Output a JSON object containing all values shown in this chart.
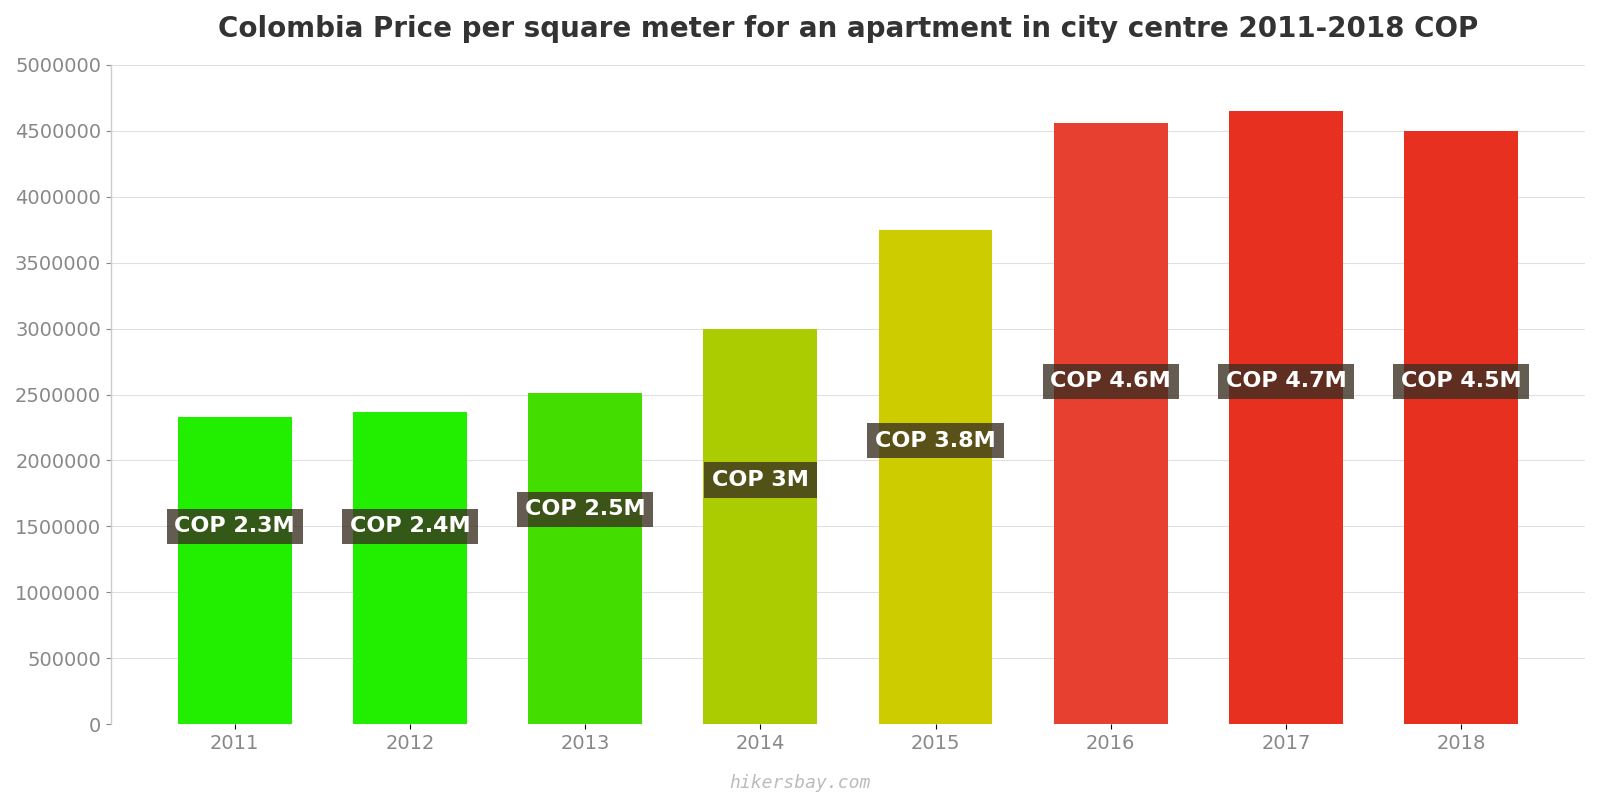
{
  "title": "Colombia Price per square meter for an apartment in city centre 2011-2018 COP",
  "years": [
    2011,
    2012,
    2013,
    2014,
    2015,
    2016,
    2017,
    2018
  ],
  "values": [
    2330000,
    2370000,
    2510000,
    3000000,
    3750000,
    4560000,
    4650000,
    4500000
  ],
  "bar_colors": [
    "#22ee00",
    "#22ee00",
    "#44dd00",
    "#aacc00",
    "#cccc00",
    "#e84030",
    "#e83020",
    "#e83020"
  ],
  "labels": [
    "COP 2.3M",
    "COP 2.4M",
    "COP 2.5M",
    "COP 3M",
    "COP 3.8M",
    "COP 4.6M",
    "COP 4.7M",
    "COP 4.5M"
  ],
  "label_y_positions": [
    1500000,
    1500000,
    1630000,
    1850000,
    2150000,
    2600000,
    2600000,
    2600000
  ],
  "ylim": [
    0,
    5000000
  ],
  "yticks": [
    0,
    500000,
    1000000,
    1500000,
    2000000,
    2500000,
    3000000,
    3500000,
    4000000,
    4500000,
    5000000
  ],
  "background_color": "#ffffff",
  "watermark": "hikersbay.com",
  "title_fontsize": 20,
  "label_fontsize": 16,
  "tick_fontsize": 14,
  "bar_width": 0.65
}
